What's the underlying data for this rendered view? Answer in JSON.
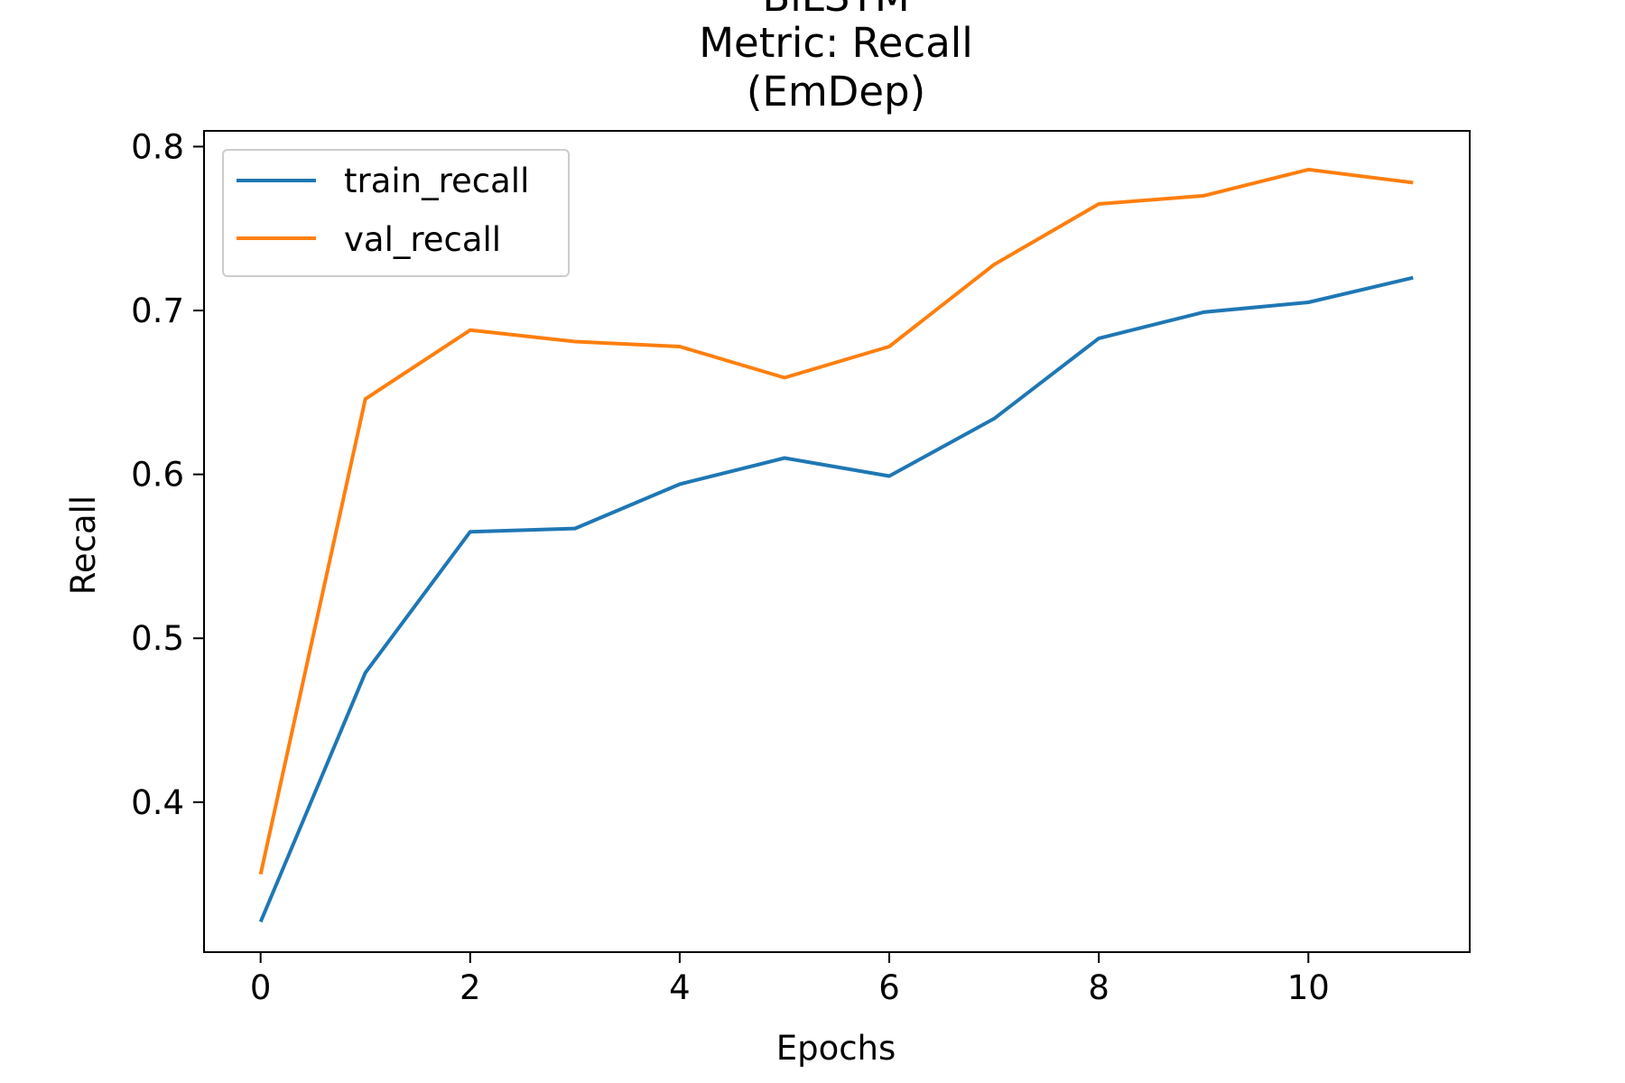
{
  "chart_data": {
    "type": "line",
    "title_lines": [
      "BiLSTM",
      "Metric: Recall",
      "(EmDep)"
    ],
    "xlabel": "Epochs",
    "ylabel": "Recall",
    "x": [
      0,
      1,
      2,
      3,
      4,
      5,
      6,
      7,
      8,
      9,
      10,
      11
    ],
    "xlim": [
      -0.54,
      11.54
    ],
    "ylim": [
      0.3085,
      0.8096
    ],
    "xticks": [
      0,
      2,
      4,
      6,
      8,
      10
    ],
    "yticks": [
      0.4,
      0.5,
      0.6,
      0.7,
      0.8
    ],
    "xtick_labels": [
      "0",
      "2",
      "4",
      "6",
      "8",
      "10"
    ],
    "ytick_labels": [
      "0.4",
      "0.5",
      "0.6",
      "0.7",
      "0.8"
    ],
    "grid": false,
    "legend_position": "upper-left",
    "series": [
      {
        "name": "train_recall",
        "color": "#1f77b4",
        "values": [
          0.327,
          0.479,
          0.565,
          0.567,
          0.594,
          0.61,
          0.599,
          0.634,
          0.683,
          0.699,
          0.705,
          0.72
        ]
      },
      {
        "name": "val_recall",
        "color": "#ff7f0e",
        "values": [
          0.356,
          0.646,
          0.688,
          0.681,
          0.678,
          0.659,
          0.678,
          0.728,
          0.765,
          0.77,
          0.786,
          0.778
        ]
      }
    ]
  }
}
